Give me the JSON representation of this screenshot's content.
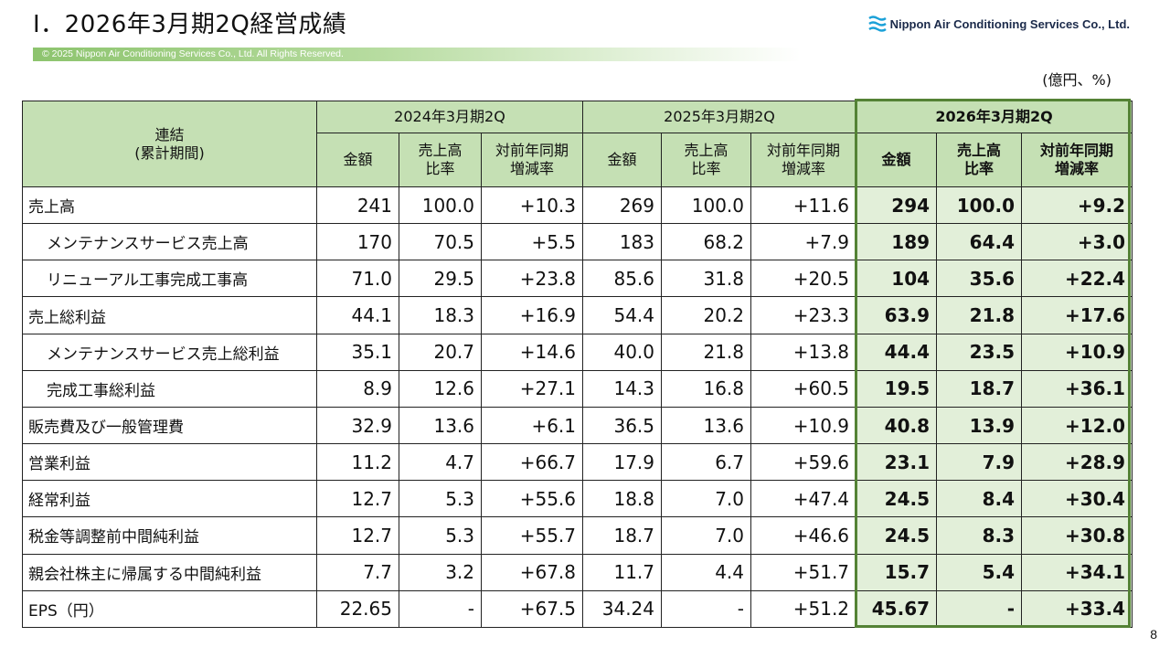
{
  "header": {
    "title": "Ⅰ．2026年3月期2Q経営成績",
    "company": "Nippon Air Conditioning Services Co., Ltd.",
    "copyright": "© 2025 Nippon Air Conditioning Services Co., Ltd. All Rights Reserved.",
    "unit": "(億円、%)"
  },
  "page_number": "8",
  "colors": {
    "header_green": "#c5e0b4",
    "highlight_border": "#548235",
    "highlight_fill": "#e2efd9",
    "logo_blue": "#1ba1d8"
  },
  "table": {
    "corner_line1": "連結",
    "corner_line2": "(累計期間)",
    "periods": [
      "2024年3月期2Q",
      "2025年3月期2Q",
      "2026年3月期2Q"
    ],
    "subheaders": [
      {
        "line1": "金額",
        "line2": ""
      },
      {
        "line1": "売上高",
        "line2": "比率"
      },
      {
        "line1": "対前年同期",
        "line2": "増減率"
      }
    ],
    "rows": [
      {
        "label": "売上高",
        "indent": false,
        "values": [
          "241",
          "100.0",
          "+10.3",
          "269",
          "100.0",
          "+11.6",
          "294",
          "100.0",
          "+9.2"
        ]
      },
      {
        "label": "メンテナンスサービス売上高",
        "indent": true,
        "values": [
          "170",
          "70.5",
          "+5.5",
          "183",
          "68.2",
          "+7.9",
          "189",
          "64.4",
          "+3.0"
        ]
      },
      {
        "label": "リニューアル工事完成工事高",
        "indent": true,
        "values": [
          "71.0",
          "29.5",
          "+23.8",
          "85.6",
          "31.8",
          "+20.5",
          "104",
          "35.6",
          "+22.4"
        ]
      },
      {
        "label": "売上総利益",
        "indent": false,
        "values": [
          "44.1",
          "18.3",
          "+16.9",
          "54.4",
          "20.2",
          "+23.3",
          "63.9",
          "21.8",
          "+17.6"
        ]
      },
      {
        "label": "メンテナンスサービス売上総利益",
        "indent": true,
        "values": [
          "35.1",
          "20.7",
          "+14.6",
          "40.0",
          "21.8",
          "+13.8",
          "44.4",
          "23.5",
          "+10.9"
        ]
      },
      {
        "label": "完成工事総利益",
        "indent": true,
        "values": [
          "8.9",
          "12.6",
          "+27.1",
          "14.3",
          "16.8",
          "+60.5",
          "19.5",
          "18.7",
          "+36.1"
        ]
      },
      {
        "label": "販売費及び一般管理費",
        "indent": false,
        "values": [
          "32.9",
          "13.6",
          "+6.1",
          "36.5",
          "13.6",
          "+10.9",
          "40.8",
          "13.9",
          "+12.0"
        ]
      },
      {
        "label": "営業利益",
        "indent": false,
        "values": [
          "11.2",
          "4.7",
          "+66.7",
          "17.9",
          "6.7",
          "+59.6",
          "23.1",
          "7.9",
          "+28.9"
        ]
      },
      {
        "label": "経常利益",
        "indent": false,
        "values": [
          "12.7",
          "5.3",
          "+55.6",
          "18.8",
          "7.0",
          "+47.4",
          "24.5",
          "8.4",
          "+30.4"
        ]
      },
      {
        "label": "税金等調整前中間純利益",
        "indent": false,
        "values": [
          "12.7",
          "5.3",
          "+55.7",
          "18.7",
          "7.0",
          "+46.6",
          "24.5",
          "8.3",
          "+30.8"
        ]
      },
      {
        "label": "親会社株主に帰属する中間純利益",
        "indent": false,
        "values": [
          "7.7",
          "3.2",
          "+67.8",
          "11.7",
          "4.4",
          "+51.7",
          "15.7",
          "5.4",
          "+34.1"
        ]
      },
      {
        "label": "EPS（円）",
        "indent": false,
        "values": [
          "22.65",
          "-",
          "+67.5",
          "34.24",
          "-",
          "+51.2",
          "45.67",
          "-",
          "+33.4"
        ]
      }
    ]
  }
}
